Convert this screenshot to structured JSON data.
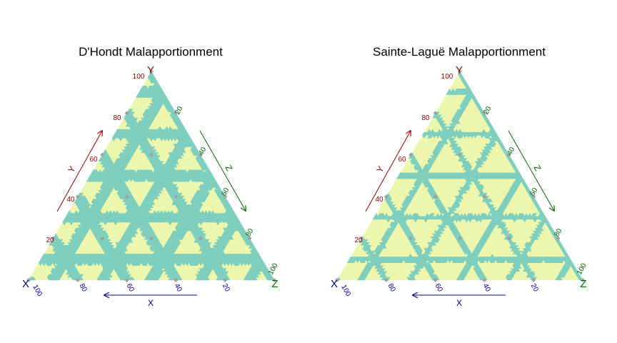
{
  "chart_data": [
    {
      "type": "ternary",
      "title": "D'Hondt Malapportionment",
      "vertex_labels": {
        "x": "X",
        "y": "Y",
        "z": "Z"
      },
      "axis_labels": {
        "x": "X",
        "y": "Y",
        "z": "Z"
      },
      "ticks": [
        "20",
        "40",
        "60",
        "80",
        "100"
      ],
      "tick_values": [
        20,
        40,
        60,
        80,
        100
      ],
      "region_colors": {
        "base": "#ecf7ad",
        "malapportioned": "#7fcfbf"
      },
      "marker_color": "#a0a0a0",
      "band_strength": 1.0,
      "seat_points": 5
    },
    {
      "type": "ternary",
      "title": "Sainte-Laguë Malapportionment",
      "vertex_labels": {
        "x": "X",
        "y": "Y",
        "z": "Z"
      },
      "axis_labels": {
        "x": "X",
        "y": "Y",
        "z": "Z"
      },
      "ticks": [
        "20",
        "40",
        "60",
        "80",
        "100"
      ],
      "tick_values": [
        20,
        40,
        60,
        80,
        100
      ],
      "region_colors": {
        "base": "#ecf7ad",
        "malapportioned": "#7fcfbf"
      },
      "marker_color": "#a0a0a0",
      "band_strength": 0.45,
      "seat_points": 5
    }
  ]
}
